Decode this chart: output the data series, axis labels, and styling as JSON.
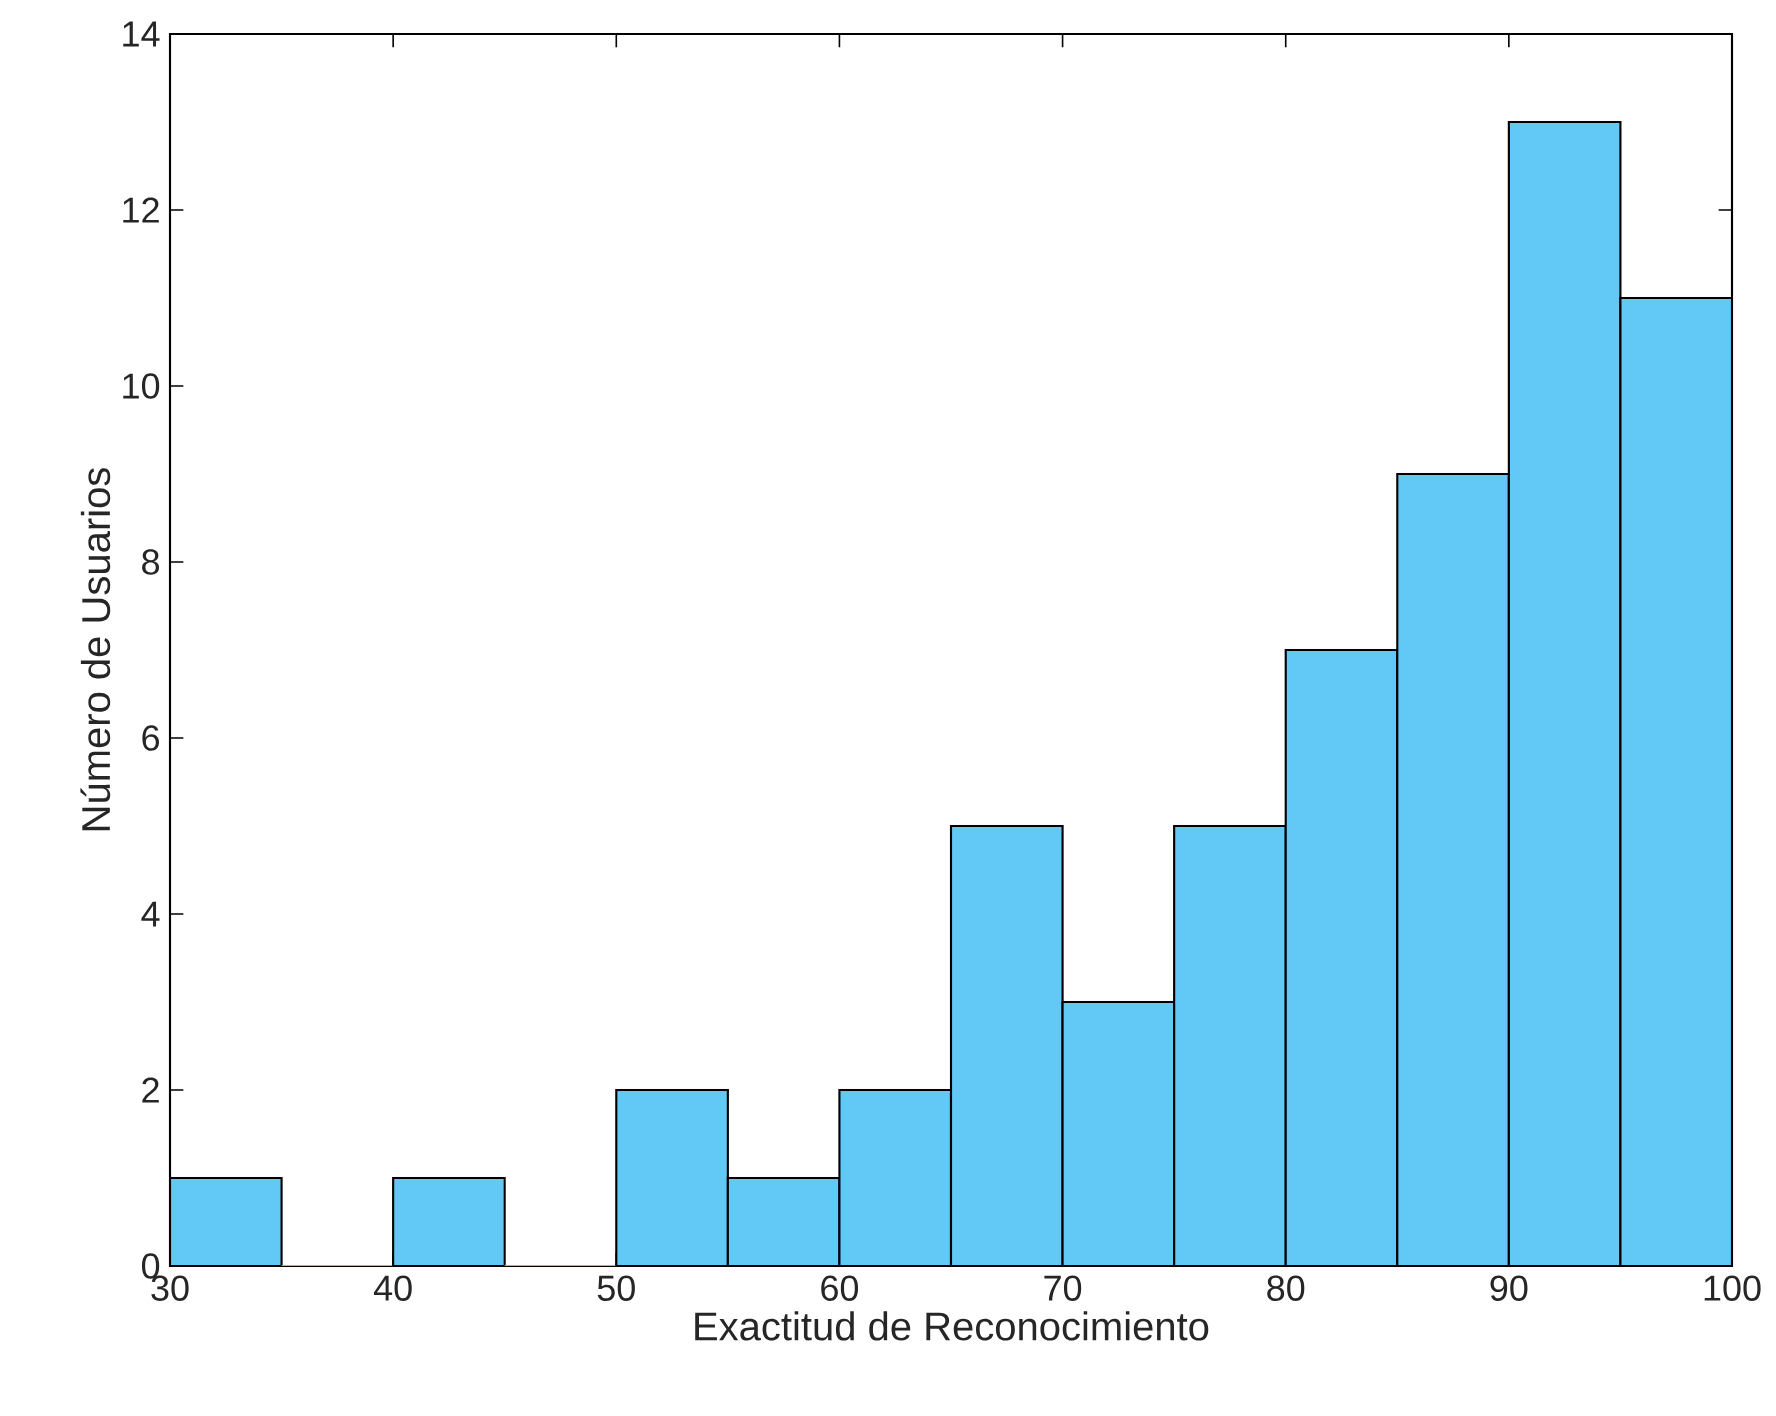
{
  "chart_data": {
    "type": "histogram",
    "xlabel": "Exactitud de Reconocimiento",
    "ylabel": "Número de Usuarios",
    "bins": [
      30,
      35,
      40,
      45,
      50,
      55,
      60,
      65,
      70,
      75,
      80,
      85,
      90,
      95,
      100
    ],
    "values": [
      1,
      0,
      1,
      0,
      2,
      1,
      2,
      5,
      3,
      5,
      7,
      9,
      13,
      11
    ],
    "color": "#62c9f7",
    "xlim": [
      30,
      100
    ],
    "ylim": [
      0,
      14
    ],
    "xticks": [
      30,
      40,
      50,
      60,
      70,
      80,
      90,
      100
    ],
    "yticks": [
      0,
      2,
      4,
      6,
      8,
      10,
      12,
      14
    ]
  }
}
